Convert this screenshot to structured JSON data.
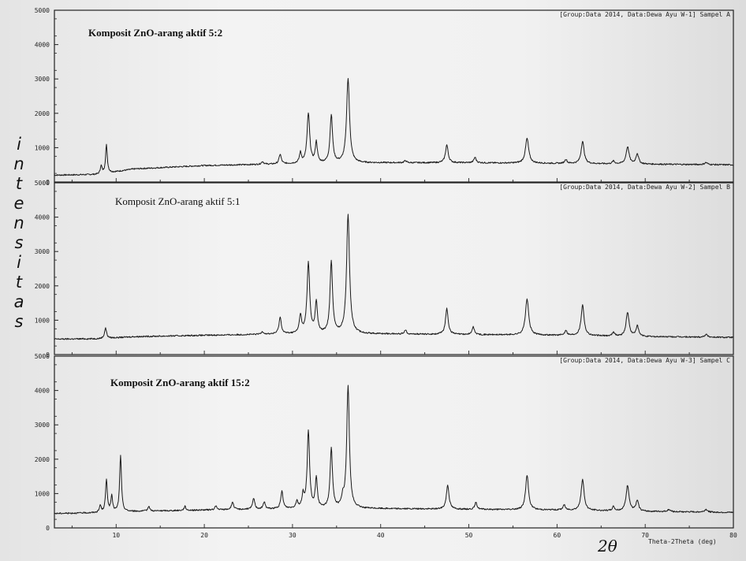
{
  "y_axis_label_letters": [
    "i",
    "n",
    "t",
    "e",
    "n",
    "s",
    "i",
    "t",
    "a",
    "s"
  ],
  "x_axis_symbol": "2θ",
  "x_axis_label": "Theta-2Theta (deg)",
  "x_ticks": [
    "10",
    "20",
    "30",
    "40",
    "50",
    "60",
    "70",
    "80"
  ],
  "y_ticks": [
    "0",
    "1000",
    "2000",
    "3000",
    "4000",
    "5000"
  ],
  "panel_headers": [
    "[Group:Data 2014, Data:Dewa Ayu W-1] Sampel A",
    "[Group:Data 2014, Data:Dewa Ayu W-2] Sampel B",
    "[Group:Data 2014, Data:Dewa Ayu W-3] Sampel C"
  ],
  "colors": {
    "trace": "#1a1a1a",
    "frame": "#222222",
    "paper": "#efefef"
  },
  "chart_data": [
    {
      "type": "line",
      "title": "Komposit ZnO-arang aktif 5:2",
      "header": "[Group:Data 2014, Data:Dewa Ayu W-1] Sampel A",
      "xlabel": "Theta-2Theta (deg)",
      "ylabel": "intensitas",
      "xlim": [
        3,
        80
      ],
      "ylim": [
        0,
        5000
      ],
      "baseline": [
        [
          3,
          200
        ],
        [
          8,
          220
        ],
        [
          12,
          380
        ],
        [
          20,
          480
        ],
        [
          30,
          530
        ],
        [
          40,
          560
        ],
        [
          50,
          560
        ],
        [
          60,
          540
        ],
        [
          70,
          520
        ],
        [
          80,
          500
        ]
      ],
      "peaks": [
        {
          "x": 8.3,
          "y": 230,
          "w": 0.12
        },
        {
          "x": 8.9,
          "y": 820,
          "w": 0.12
        },
        {
          "x": 26.6,
          "y": 80,
          "w": 0.15
        },
        {
          "x": 28.6,
          "y": 280,
          "w": 0.15
        },
        {
          "x": 30.9,
          "y": 300,
          "w": 0.14
        },
        {
          "x": 31.8,
          "y": 1450,
          "w": 0.18
        },
        {
          "x": 32.7,
          "y": 600,
          "w": 0.14
        },
        {
          "x": 34.4,
          "y": 1400,
          "w": 0.17
        },
        {
          "x": 36.3,
          "y": 2450,
          "w": 0.2
        },
        {
          "x": 42.8,
          "y": 60,
          "w": 0.15
        },
        {
          "x": 47.5,
          "y": 520,
          "w": 0.18
        },
        {
          "x": 50.7,
          "y": 160,
          "w": 0.15
        },
        {
          "x": 56.6,
          "y": 720,
          "w": 0.22
        },
        {
          "x": 61.0,
          "y": 120,
          "w": 0.15
        },
        {
          "x": 62.9,
          "y": 650,
          "w": 0.2
        },
        {
          "x": 66.4,
          "y": 80,
          "w": 0.15
        },
        {
          "x": 68.0,
          "y": 500,
          "w": 0.2
        },
        {
          "x": 69.1,
          "y": 300,
          "w": 0.18
        },
        {
          "x": 76.9,
          "y": 60,
          "w": 0.2
        }
      ]
    },
    {
      "type": "line",
      "title": "Komposit ZnO-arang aktif 5:1",
      "header": "[Group:Data 2014, Data:Dewa Ayu W-2] Sampel B",
      "xlabel": "Theta-2Theta (deg)",
      "ylabel": "intensitas",
      "xlim": [
        3,
        80
      ],
      "ylim": [
        0,
        5000
      ],
      "baseline": [
        [
          3,
          450
        ],
        [
          8,
          460
        ],
        [
          12,
          520
        ],
        [
          20,
          560
        ],
        [
          30,
          600
        ],
        [
          40,
          600
        ],
        [
          50,
          580
        ],
        [
          60,
          560
        ],
        [
          70,
          520
        ],
        [
          80,
          500
        ]
      ],
      "peaks": [
        {
          "x": 8.8,
          "y": 300,
          "w": 0.14
        },
        {
          "x": 26.6,
          "y": 80,
          "w": 0.15
        },
        {
          "x": 28.6,
          "y": 480,
          "w": 0.16
        },
        {
          "x": 30.9,
          "y": 520,
          "w": 0.15
        },
        {
          "x": 31.8,
          "y": 2050,
          "w": 0.18
        },
        {
          "x": 32.7,
          "y": 900,
          "w": 0.15
        },
        {
          "x": 34.4,
          "y": 2100,
          "w": 0.17
        },
        {
          "x": 36.3,
          "y": 3450,
          "w": 0.2
        },
        {
          "x": 42.8,
          "y": 120,
          "w": 0.15
        },
        {
          "x": 47.5,
          "y": 750,
          "w": 0.18
        },
        {
          "x": 50.5,
          "y": 220,
          "w": 0.16
        },
        {
          "x": 56.6,
          "y": 1050,
          "w": 0.22
        },
        {
          "x": 61.0,
          "y": 150,
          "w": 0.15
        },
        {
          "x": 62.9,
          "y": 900,
          "w": 0.2
        },
        {
          "x": 66.4,
          "y": 120,
          "w": 0.15
        },
        {
          "x": 68.0,
          "y": 700,
          "w": 0.2
        },
        {
          "x": 69.1,
          "y": 300,
          "w": 0.18
        },
        {
          "x": 76.9,
          "y": 80,
          "w": 0.2
        }
      ]
    },
    {
      "type": "line",
      "title": "Komposit ZnO-arang aktif 15:2",
      "header": "[Group:Data 2014, Data:Dewa Ayu W-3] Sampel C",
      "xlabel": "Theta-2Theta (deg)",
      "ylabel": "intensitas",
      "xlim": [
        3,
        80
      ],
      "ylim": [
        0,
        5000
      ],
      "baseline": [
        [
          3,
          420
        ],
        [
          8,
          440
        ],
        [
          12,
          480
        ],
        [
          20,
          520
        ],
        [
          30,
          560
        ],
        [
          40,
          560
        ],
        [
          50,
          540
        ],
        [
          60,
          520
        ],
        [
          70,
          480
        ],
        [
          80,
          450
        ]
      ],
      "peaks": [
        {
          "x": 8.2,
          "y": 200,
          "w": 0.12
        },
        {
          "x": 8.9,
          "y": 950,
          "w": 0.12
        },
        {
          "x": 9.5,
          "y": 450,
          "w": 0.12
        },
        {
          "x": 10.5,
          "y": 1650,
          "w": 0.12
        },
        {
          "x": 13.7,
          "y": 150,
          "w": 0.12
        },
        {
          "x": 17.8,
          "y": 120,
          "w": 0.12
        },
        {
          "x": 21.3,
          "y": 120,
          "w": 0.12
        },
        {
          "x": 23.2,
          "y": 220,
          "w": 0.14
        },
        {
          "x": 25.6,
          "y": 320,
          "w": 0.14
        },
        {
          "x": 26.8,
          "y": 200,
          "w": 0.14
        },
        {
          "x": 28.8,
          "y": 500,
          "w": 0.15
        },
        {
          "x": 30.5,
          "y": 200,
          "w": 0.14
        },
        {
          "x": 31.2,
          "y": 380,
          "w": 0.14
        },
        {
          "x": 31.8,
          "y": 2250,
          "w": 0.16
        },
        {
          "x": 32.7,
          "y": 850,
          "w": 0.14
        },
        {
          "x": 34.4,
          "y": 1750,
          "w": 0.16
        },
        {
          "x": 35.7,
          "y": 250,
          "w": 0.14
        },
        {
          "x": 36.3,
          "y": 3580,
          "w": 0.18
        },
        {
          "x": 47.6,
          "y": 700,
          "w": 0.18
        },
        {
          "x": 50.8,
          "y": 200,
          "w": 0.15
        },
        {
          "x": 56.6,
          "y": 1000,
          "w": 0.2
        },
        {
          "x": 60.8,
          "y": 150,
          "w": 0.15
        },
        {
          "x": 62.9,
          "y": 900,
          "w": 0.2
        },
        {
          "x": 66.4,
          "y": 120,
          "w": 0.15
        },
        {
          "x": 68.0,
          "y": 750,
          "w": 0.2
        },
        {
          "x": 69.1,
          "y": 300,
          "w": 0.18
        },
        {
          "x": 72.7,
          "y": 60,
          "w": 0.2
        },
        {
          "x": 76.9,
          "y": 80,
          "w": 0.2
        }
      ]
    }
  ]
}
